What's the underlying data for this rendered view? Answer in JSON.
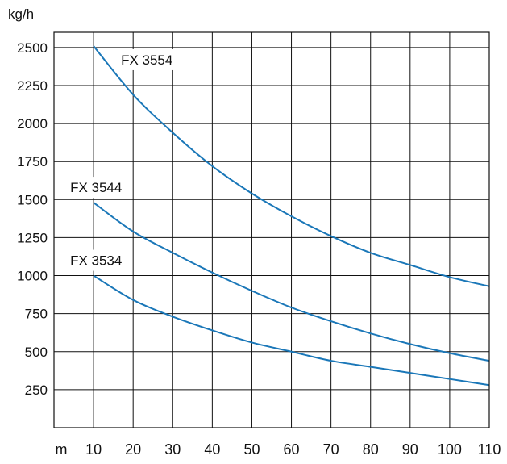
{
  "chart_data": {
    "type": "line",
    "title": "",
    "ylabel": "kg/h",
    "xlabel": "m",
    "x_ticks": [
      10,
      20,
      30,
      40,
      50,
      60,
      70,
      80,
      90,
      100,
      110
    ],
    "y_ticks": [
      250,
      500,
      750,
      1000,
      1250,
      1500,
      1750,
      2000,
      2250,
      2500
    ],
    "xlim": [
      0,
      110
    ],
    "ylim": [
      0,
      2600
    ],
    "grid": true,
    "line_color": "#1a77b8",
    "series": [
      {
        "name": "FX 3554",
        "x": [
          10,
          20,
          30,
          40,
          50,
          60,
          70,
          80,
          90,
          100,
          110
        ],
        "y": [
          2510,
          2190,
          1940,
          1720,
          1540,
          1390,
          1260,
          1150,
          1070,
          990,
          930
        ]
      },
      {
        "name": "FX 3544",
        "x": [
          10,
          20,
          30,
          40,
          50,
          60,
          70,
          80,
          90,
          100,
          110
        ],
        "y": [
          1480,
          1290,
          1150,
          1020,
          900,
          790,
          700,
          620,
          550,
          490,
          440
        ]
      },
      {
        "name": "FX 3534",
        "x": [
          10,
          20,
          30,
          40,
          50,
          60,
          70,
          80,
          90,
          100,
          110
        ],
        "y": [
          1000,
          840,
          730,
          640,
          560,
          500,
          440,
          400,
          360,
          320,
          280
        ]
      }
    ]
  }
}
